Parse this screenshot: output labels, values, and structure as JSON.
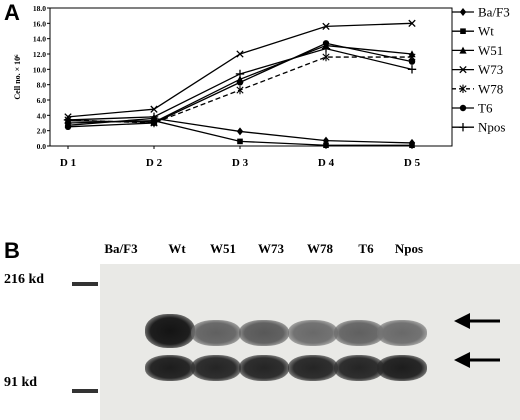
{
  "panel_a_letter": "A",
  "panel_b_letter": "B",
  "chart_data": {
    "type": "line",
    "title": "",
    "xlabel": "",
    "ylabel": "Cell no. × 10⁶",
    "categories": [
      "D 1",
      "D 2",
      "D 3",
      "D 4",
      "D 5"
    ],
    "ylim": [
      0,
      18
    ],
    "yticks": [
      "0.0",
      "2.0",
      "4.0",
      "6.0",
      "8.0",
      "10.0",
      "12.0",
      "14.0",
      "16.0",
      "18.0"
    ],
    "legend_position": "right",
    "grid": false,
    "series": [
      {
        "name": "Ba/F3",
        "marker": "diamond",
        "dashed": false,
        "values": [
          2.7,
          3.6,
          1.9,
          0.7,
          0.4
        ]
      },
      {
        "name": "Wt",
        "marker": "square",
        "dashed": false,
        "values": [
          3.0,
          3.3,
          0.6,
          0.1,
          0.1
        ]
      },
      {
        "name": "W51",
        "marker": "triangle",
        "dashed": false,
        "values": [
          3.3,
          3.1,
          8.7,
          13.1,
          12.0
        ]
      },
      {
        "name": "W73",
        "marker": "x",
        "dashed": false,
        "values": [
          3.8,
          4.8,
          12.0,
          15.6,
          16.0
        ]
      },
      {
        "name": "W78",
        "marker": "star",
        "dashed": true,
        "values": [
          3.4,
          3.0,
          7.3,
          11.6,
          11.6
        ]
      },
      {
        "name": "T6",
        "marker": "circle",
        "dashed": false,
        "values": [
          2.5,
          3.0,
          8.3,
          13.4,
          11.0
        ]
      },
      {
        "name": "Npos",
        "marker": "plus",
        "dashed": false,
        "values": [
          3.4,
          3.8,
          9.4,
          12.7,
          10.0
        ]
      }
    ]
  },
  "blot": {
    "lanes": [
      "Ba/F3",
      "Wt",
      "W51",
      "W73",
      "W78",
      "T6",
      "Npos"
    ],
    "mw_upper": "216 kd",
    "mw_lower": "91 kd",
    "upper_band_intensity": [
      0.0,
      1.0,
      0.55,
      0.6,
      0.5,
      0.55,
      0.5
    ],
    "lower_band_intensity": [
      0.0,
      0.95,
      0.9,
      0.9,
      0.9,
      0.9,
      0.95
    ]
  }
}
